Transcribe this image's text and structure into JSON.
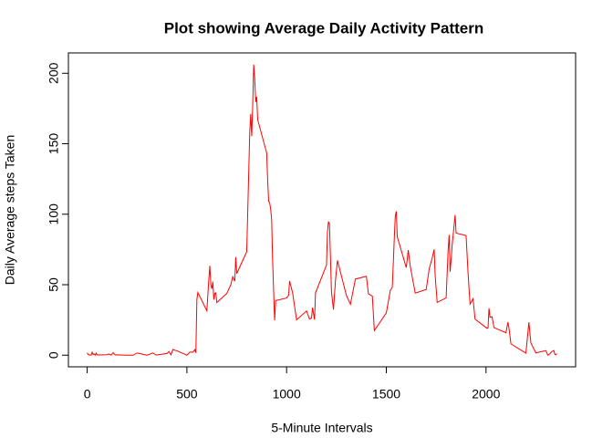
{
  "chart_data": {
    "type": "line",
    "title": "Plot showing Average Daily Activity Pattern",
    "x_label": "5-Minute Intervals",
    "y_label": "Daily Average steps Taken",
    "color": "#ff0000",
    "x": [
      0,
      5,
      10,
      15,
      20,
      25,
      30,
      35,
      40,
      45,
      50,
      55,
      100,
      110,
      120,
      130,
      140,
      150,
      200,
      230,
      250,
      300,
      330,
      345,
      400,
      410,
      420,
      430,
      440,
      450,
      500,
      515,
      530,
      540,
      545,
      550,
      555,
      600,
      610,
      615,
      620,
      625,
      630,
      635,
      640,
      645,
      650,
      700,
      720,
      730,
      740,
      745,
      750,
      800,
      810,
      815,
      820,
      825,
      830,
      835,
      840,
      845,
      850,
      855,
      900,
      905,
      910,
      915,
      920,
      925,
      930,
      935,
      940,
      945,
      1000,
      1010,
      1015,
      1030,
      1050,
      1100,
      1115,
      1125,
      1130,
      1140,
      1145,
      1200,
      1205,
      1210,
      1215,
      1225,
      1235,
      1245,
      1255,
      1300,
      1320,
      1345,
      1400,
      1410,
      1430,
      1440,
      1500,
      1520,
      1530,
      1535,
      1540,
      1545,
      1550,
      1555,
      1600,
      1610,
      1620,
      1645,
      1700,
      1715,
      1730,
      1740,
      1745,
      1755,
      1800,
      1810,
      1815,
      1820,
      1825,
      1830,
      1845,
      1850,
      1900,
      1910,
      1920,
      1935,
      1945,
      2000,
      2005,
      2010,
      2015,
      2020,
      2030,
      2040,
      2100,
      2110,
      2115,
      2125,
      2200,
      2215,
      2225,
      2250,
      2300,
      2310,
      2320,
      2330,
      2340,
      2345,
      2350,
      2355
    ],
    "values": [
      1.72,
      0.34,
      0.13,
      0.15,
      0.08,
      2.09,
      0.53,
      0.87,
      0,
      1.47,
      0.3,
      0.13,
      0.32,
      0.83,
      0,
      1.83,
      0.17,
      0.26,
      0,
      0,
      1.55,
      0,
      1.62,
      0.08,
      1.19,
      2.57,
      0.34,
      4.11,
      3.49,
      3.11,
      0,
      2.25,
      2.09,
      3.96,
      1.62,
      39.45,
      44.49,
      31.49,
      53.77,
      63.45,
      49.96,
      47.08,
      52.15,
      39.34,
      44.02,
      44.17,
      37.36,
      43.81,
      49.92,
      55.68,
      52.51,
      69.55,
      57.85,
      73.38,
      129.43,
      157.53,
      171.15,
      155.4,
      177.3,
      206.17,
      195.92,
      179.57,
      183.4,
      167.02,
      143.45,
      124.04,
      109.11,
      108.11,
      103.72,
      95.96,
      66.21,
      45.23,
      24.79,
      38.75,
      40.57,
      42.42,
      52.66,
      44.28,
      25.09,
      31.36,
      25.55,
      26.51,
      33.75,
      25.23,
      44.25,
      63.87,
      87.7,
      94.85,
      92.77,
      45,
      32.42,
      53,
      67.28,
      42.34,
      36.06,
      54,
      56,
      43.58,
      41.85,
      17.5,
      30.02,
      45.96,
      48.13,
      65.32,
      82.91,
      98.66,
      102.11,
      83.96,
      62.13,
      74.55,
      63.17,
      44,
      46.6,
      61.2,
      68.94,
      75.09,
      56.51,
      37.45,
      40.68,
      74.7,
      85.32,
      59.27,
      67.77,
      77.7,
      99.45,
      86.58,
      84.87,
      58.02,
      36.32,
      40.02,
      25.55,
      19.62,
      19.02,
      19.34,
      33.34,
      26.81,
      27.3,
      19.55,
      15.94,
      23.45,
      19.25,
      8.02,
      1.45,
      23.36,
      8.7,
      1.6,
      3.3,
      0,
      0.96,
      2.6,
      3.3,
      0.64,
      0.23,
      1.08
    ],
    "xlim": [
      -94.2,
      2449.2
    ],
    "ylim": [
      -8.25,
      214.42
    ],
    "xticks": [
      0,
      500,
      1000,
      1500,
      2000
    ],
    "yticks": [
      0,
      50,
      100,
      150,
      200
    ]
  }
}
